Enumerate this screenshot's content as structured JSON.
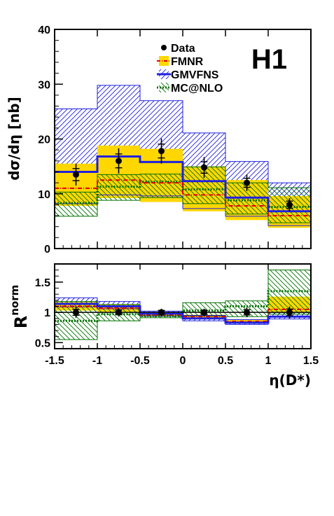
{
  "chart_data": [
    {
      "type": "histogram",
      "panel": "top",
      "experiment_label": "H1",
      "ylabel": "dσ/dη [nb]",
      "ylim": [
        0,
        40
      ],
      "yticks": [
        "0",
        "10",
        "20",
        "30",
        "40"
      ],
      "bin_edges": [
        -1.5,
        -1.0,
        -0.5,
        0.0,
        0.5,
        1.0,
        1.5
      ],
      "legend": [
        "Data",
        "FMNR",
        "GMVFNS",
        "MC@NLO"
      ],
      "data": {
        "values": [
          13.5,
          16.0,
          17.8,
          14.8,
          12.0,
          8.0
        ],
        "err": [
          2.0,
          2.3,
          2.3,
          1.9,
          1.5,
          1.2
        ]
      },
      "fmnr": {
        "central": [
          11.0,
          12.5,
          12.0,
          9.8,
          7.8,
          6.0
        ],
        "band_low": [
          7.8,
          9.2,
          8.5,
          6.8,
          5.2,
          3.8
        ],
        "band_high": [
          15.5,
          18.8,
          18.2,
          15.0,
          12.5,
          9.6
        ],
        "color": "#ffd700",
        "line_color": "#e00000"
      },
      "gmvfns": {
        "central": [
          14.0,
          16.8,
          15.8,
          12.3,
          9.3,
          6.8
        ],
        "band_low": [
          8.2,
          9.8,
          9.6,
          7.3,
          5.9,
          4.2
        ],
        "band_high": [
          25.5,
          29.8,
          27.0,
          21.1,
          15.9,
          12.0
        ],
        "color": "#2020e0"
      },
      "mcatnlo": {
        "central": [
          8.3,
          11.3,
          12.2,
          10.8,
          8.8,
          7.6
        ],
        "band_low": [
          5.9,
          8.8,
          9.3,
          8.2,
          6.3,
          4.7
        ],
        "band_high": [
          10.3,
          13.5,
          13.6,
          14.9,
          12.0,
          11.1
        ],
        "color": "#007000"
      }
    },
    {
      "type": "histogram",
      "panel": "bottom",
      "ylabel_main": "R",
      "ylabel_sup": "norm",
      "ylim": [
        0.4,
        1.8
      ],
      "yticks": [
        "0.5",
        "1",
        "1.5"
      ],
      "xlabel": "η(D*)",
      "xlim": [
        -1.5,
        1.5
      ],
      "xticks": [
        "-1.5",
        "-1",
        "-0.5",
        "0",
        "0.5",
        "1",
        "1.5"
      ],
      "bin_edges": [
        -1.5,
        -1.0,
        -0.5,
        0.0,
        0.5,
        1.0,
        1.5
      ],
      "data": {
        "values": [
          1.0,
          1.0,
          1.0,
          1.0,
          1.0,
          1.0
        ],
        "err": [
          0.09,
          0.07,
          0.06,
          0.06,
          0.08,
          0.1
        ]
      },
      "fmnr": {
        "central": [
          1.1,
          1.07,
          0.96,
          0.93,
          0.85,
          1.05
        ],
        "band_low": [
          1.03,
          1.01,
          0.93,
          0.9,
          0.82,
          0.99
        ],
        "band_high": [
          1.17,
          1.13,
          0.99,
          0.96,
          0.88,
          1.26
        ],
        "color": "#ffd700",
        "line_color": "#e00000"
      },
      "gmvfns": {
        "central": [
          1.14,
          1.1,
          0.98,
          0.9,
          0.83,
          0.93
        ],
        "band_low": [
          1.09,
          1.06,
          0.94,
          0.86,
          0.8,
          0.89
        ],
        "band_high": [
          1.24,
          1.18,
          1.02,
          0.95,
          0.88,
          1.0
        ],
        "color": "#2020e0"
      },
      "mcatnlo": {
        "central": [
          0.86,
          0.97,
          0.94,
          1.03,
          1.1,
          1.35
        ],
        "band_low": [
          0.55,
          0.86,
          0.91,
          0.94,
          0.93,
          0.97
        ],
        "band_high": [
          1.18,
          1.13,
          0.98,
          1.16,
          1.19,
          1.7
        ],
        "color": "#007000"
      }
    }
  ]
}
